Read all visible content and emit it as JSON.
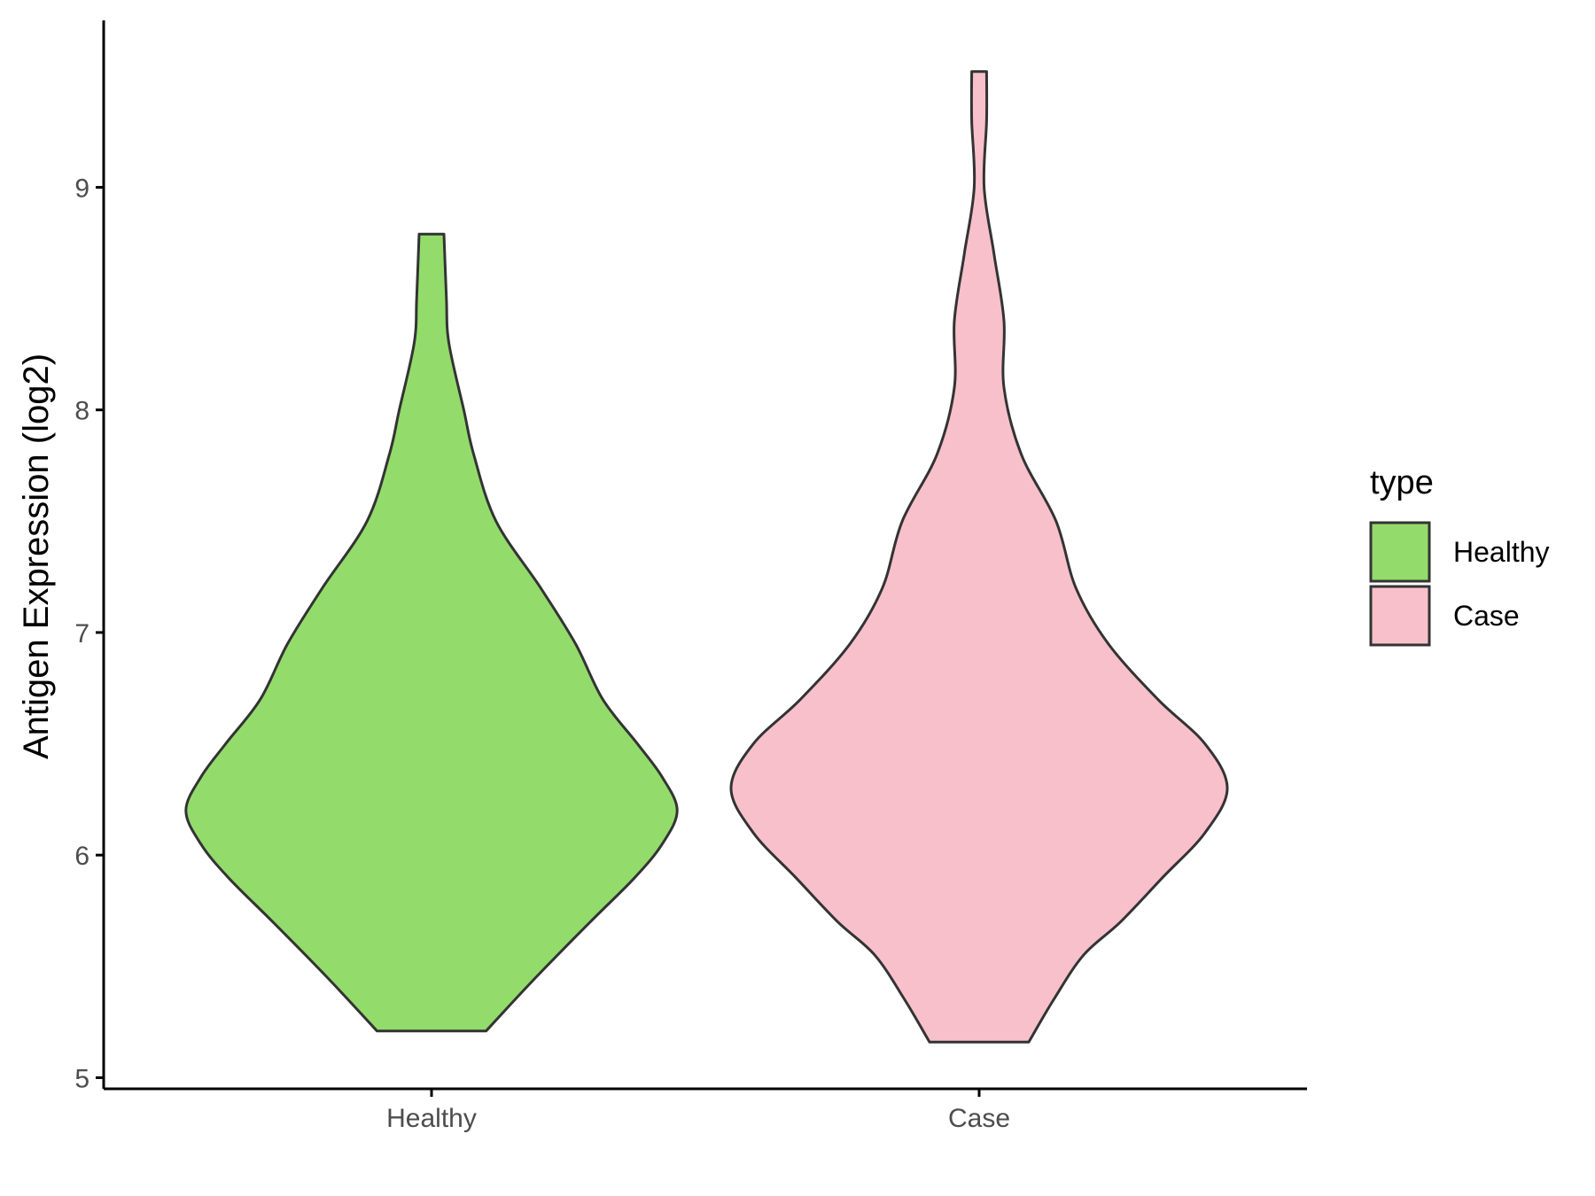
{
  "chart_data": {
    "type": "violin",
    "title": "",
    "xlabel": "",
    "ylabel": "Antigen Expression (log2)",
    "ylim": [
      4.95,
      9.75
    ],
    "yticks": [
      5,
      6,
      7,
      8,
      9
    ],
    "categories": [
      "Healthy",
      "Case"
    ],
    "legend": {
      "title": "type",
      "position": "right",
      "entries": [
        {
          "label": "Healthy",
          "color": "#93dc6b"
        },
        {
          "label": "Case",
          "color": "#f8c0cb"
        }
      ]
    },
    "grid": false,
    "series": [
      {
        "category": "Healthy",
        "color": "#93dc6b",
        "y_min": 5.21,
        "y_max": 8.79,
        "density_profile": [
          [
            5.21,
            0.22
          ],
          [
            5.45,
            0.42
          ],
          [
            5.7,
            0.64
          ],
          [
            5.9,
            0.82
          ],
          [
            6.05,
            0.93
          ],
          [
            6.2,
            0.99
          ],
          [
            6.35,
            0.93
          ],
          [
            6.5,
            0.83
          ],
          [
            6.7,
            0.69
          ],
          [
            6.95,
            0.58
          ],
          [
            7.2,
            0.44
          ],
          [
            7.5,
            0.26
          ],
          [
            7.8,
            0.17
          ],
          [
            8.0,
            0.13
          ],
          [
            8.3,
            0.07
          ],
          [
            8.5,
            0.06
          ],
          [
            8.79,
            0.05
          ]
        ]
      },
      {
        "category": "Case",
        "color": "#f8c0cb",
        "y_min": 5.16,
        "y_max": 9.52,
        "density_profile": [
          [
            5.16,
            0.2
          ],
          [
            5.35,
            0.3
          ],
          [
            5.55,
            0.42
          ],
          [
            5.7,
            0.57
          ],
          [
            5.9,
            0.74
          ],
          [
            6.1,
            0.91
          ],
          [
            6.3,
            1.0
          ],
          [
            6.5,
            0.91
          ],
          [
            6.7,
            0.72
          ],
          [
            6.95,
            0.52
          ],
          [
            7.2,
            0.39
          ],
          [
            7.5,
            0.31
          ],
          [
            7.8,
            0.17
          ],
          [
            8.1,
            0.1
          ],
          [
            8.4,
            0.1
          ],
          [
            8.7,
            0.06
          ],
          [
            9.0,
            0.02
          ],
          [
            9.3,
            0.03
          ],
          [
            9.52,
            0.03
          ]
        ]
      }
    ]
  }
}
